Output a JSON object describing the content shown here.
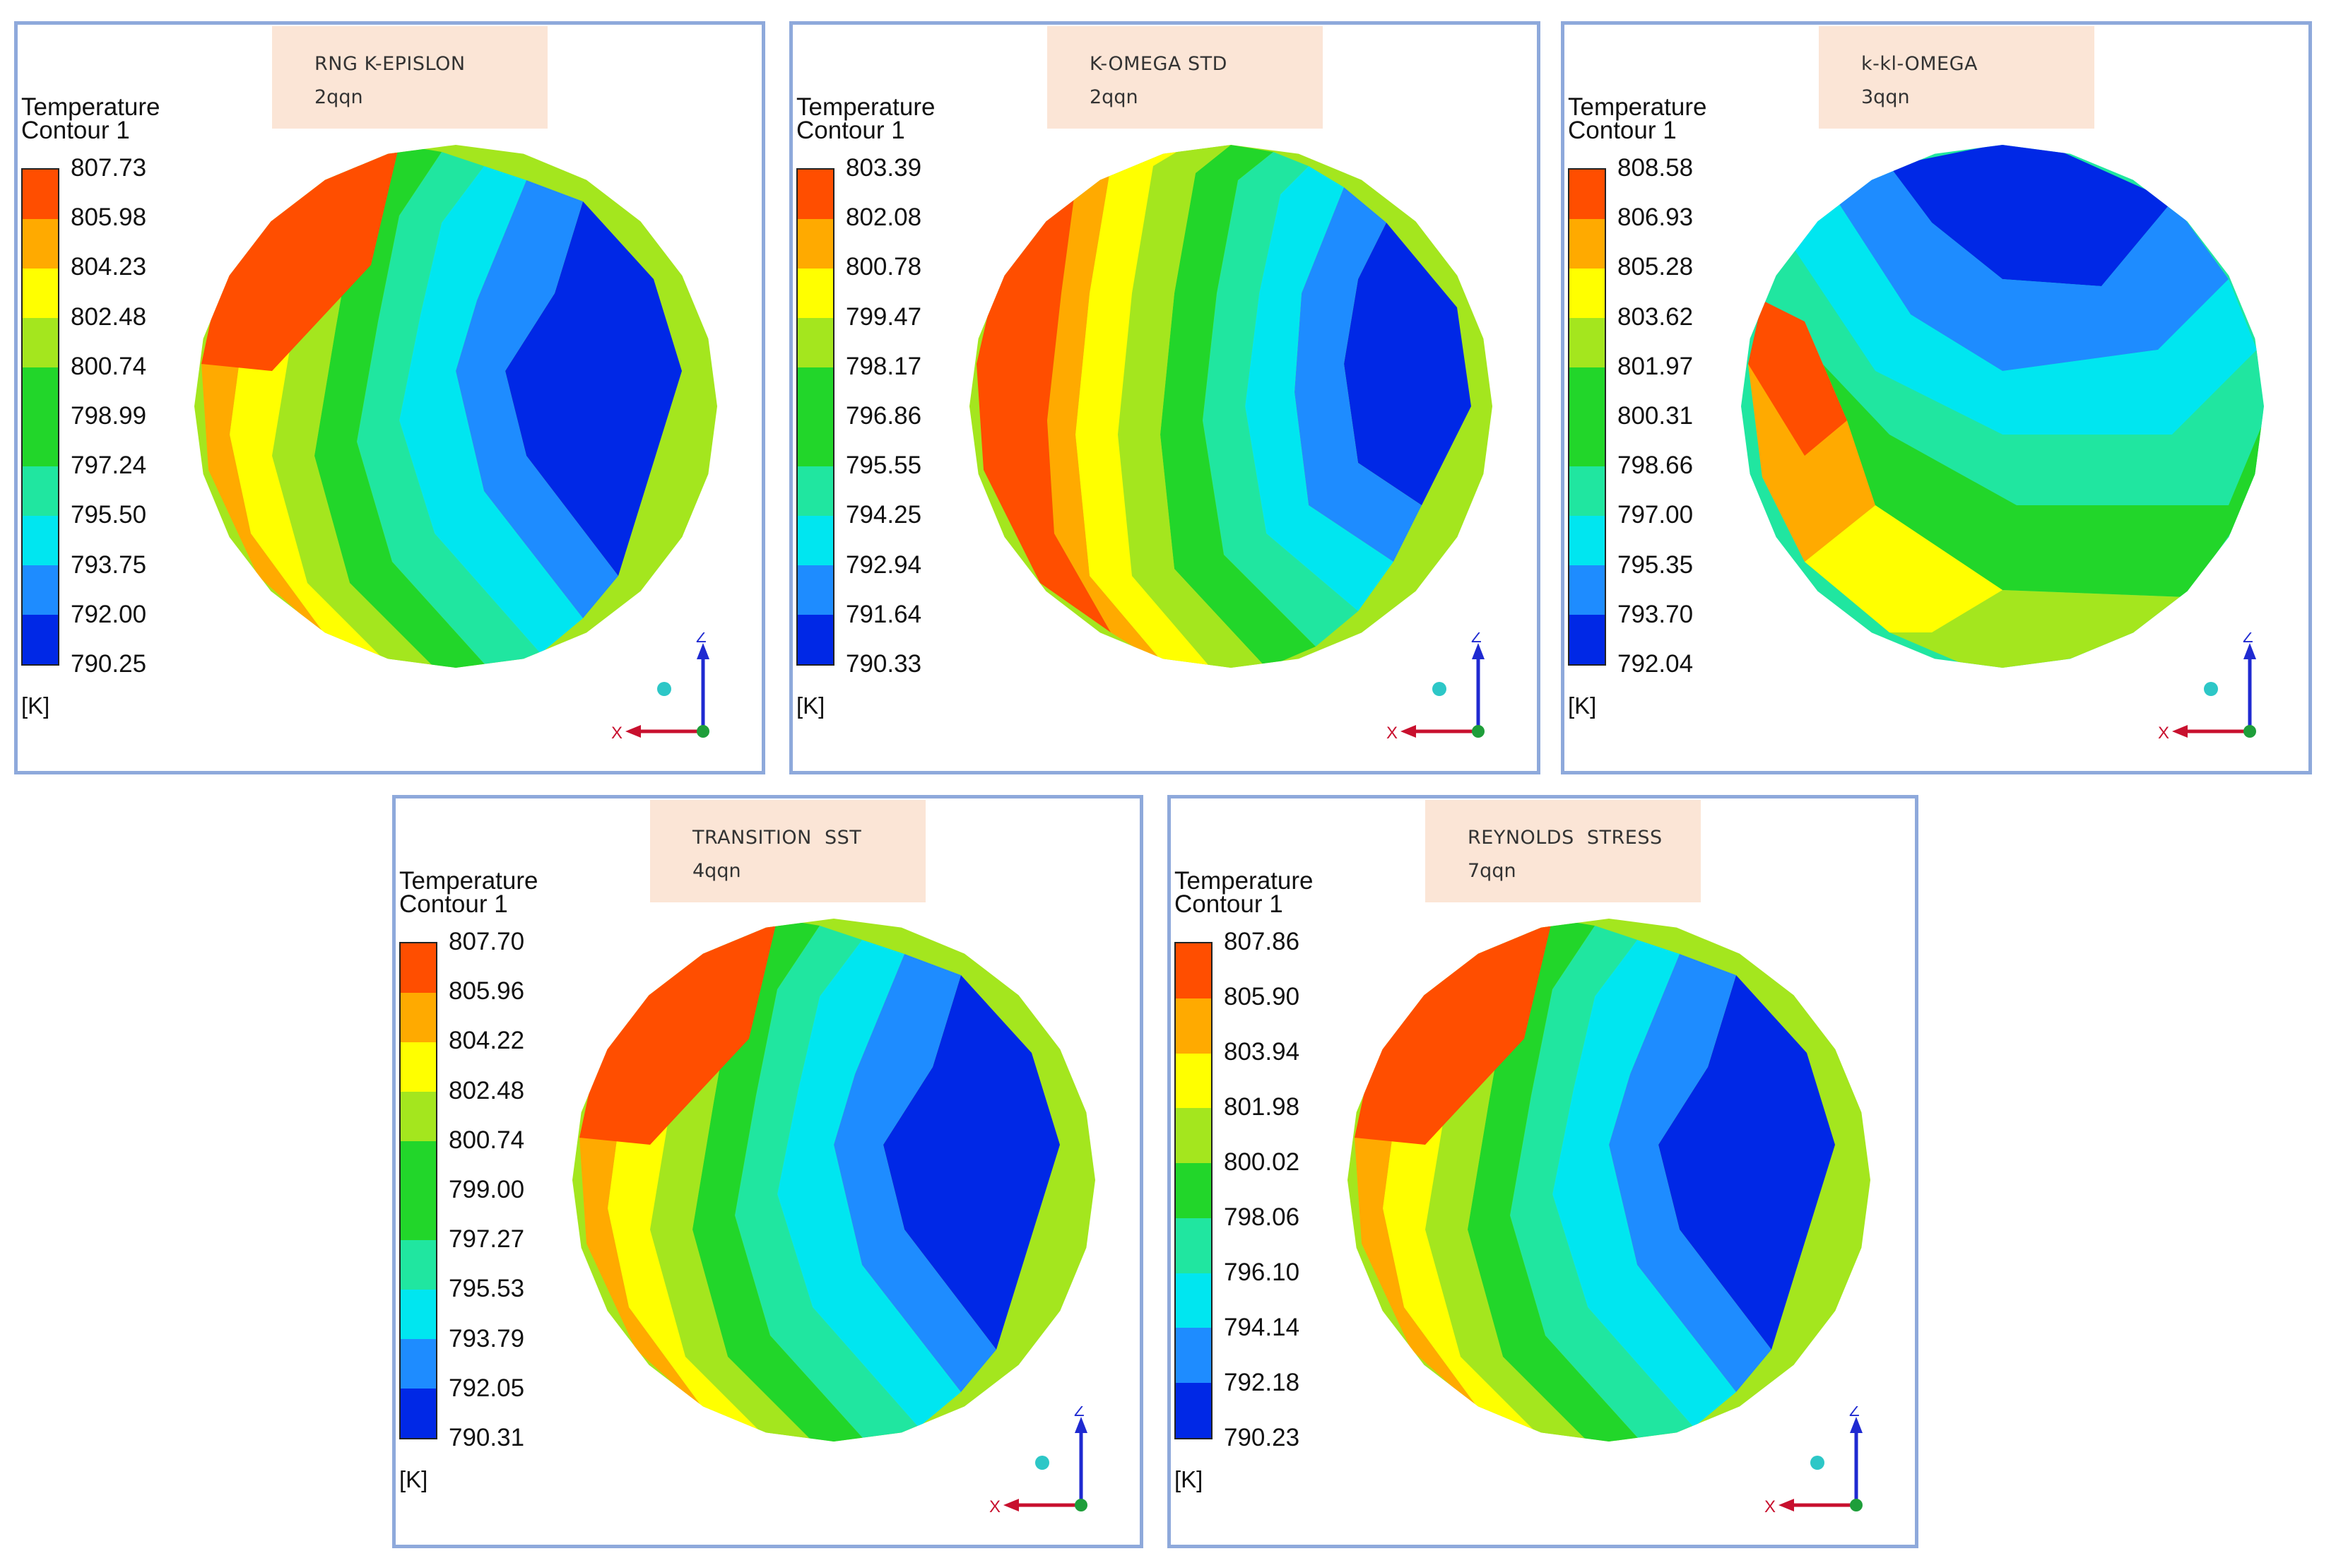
{
  "legend_title_line1": "Temperature",
  "legend_title_line2": "Contour 1",
  "unit_label": "[K]",
  "axis_labels": {
    "x": "X",
    "z": "Z"
  },
  "colormap": [
    "#0028e6",
    "#1e8cff",
    "#00e6f0",
    "#20e6a0",
    "#22d62a",
    "#a4e61e",
    "#ffff00",
    "#ffaa00",
    "#ff4e00"
  ],
  "panels": [
    {
      "model": "RNG K-EPISLON",
      "mesh": "2qqn",
      "ticks": [
        "807.73",
        "805.98",
        "804.23",
        "802.48",
        "800.74",
        "798.99",
        "797.24",
        "795.50",
        "793.75",
        "792.00",
        "790.25"
      ],
      "pattern": "standard"
    },
    {
      "model": "K-OMEGA STD",
      "mesh": "2qqn",
      "ticks": [
        "803.39",
        "802.08",
        "800.78",
        "799.47",
        "798.17",
        "796.86",
        "795.55",
        "794.25",
        "792.94",
        "791.64",
        "790.33"
      ],
      "pattern": "komega"
    },
    {
      "model": "k-kl-OMEGA",
      "mesh": "3qqn",
      "ticks": [
        "808.58",
        "806.93",
        "805.28",
        "803.62",
        "801.97",
        "800.31",
        "798.66",
        "797.00",
        "795.35",
        "793.70",
        "792.04"
      ],
      "pattern": "kkl"
    },
    {
      "model": "TRANSITION  SST",
      "mesh": "4qqn",
      "ticks": [
        "807.70",
        "805.96",
        "804.22",
        "802.48",
        "800.74",
        "799.00",
        "797.27",
        "795.53",
        "793.79",
        "792.05",
        "790.31"
      ],
      "pattern": "standard"
    },
    {
      "model": "REYNOLDS  STRESS",
      "mesh": "7qqn",
      "ticks": [
        "807.86",
        "805.90",
        "803.94",
        "801.98",
        "800.02",
        "798.06",
        "796.10",
        "794.14",
        "792.18",
        "790.23"
      ],
      "pattern": "standard"
    }
  ]
}
